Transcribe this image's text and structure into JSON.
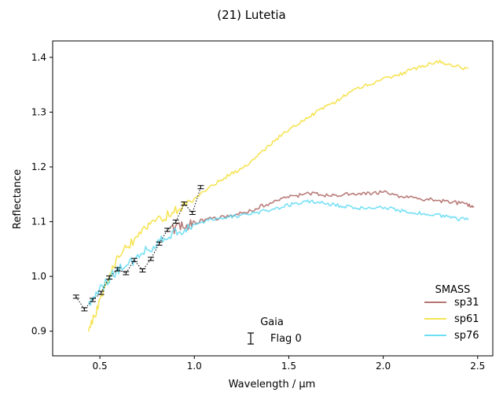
{
  "chart_data": {
    "type": "line",
    "title": "(21) Lutetia",
    "xlabel": "Wavelength / μm",
    "ylabel": "Reflectance",
    "xlim": [
      0.25,
      2.58
    ],
    "ylim": [
      0.855,
      1.43
    ],
    "xticks": [
      0.5,
      1.0,
      1.5,
      2.0,
      2.5
    ],
    "xtick_labels": [
      "0.5",
      "1.0",
      "1.5",
      "2.0",
      "2.5"
    ],
    "yticks": [
      0.9,
      1.0,
      1.1,
      1.2,
      1.3,
      1.4
    ],
    "ytick_labels": [
      "0.9",
      "1.0",
      "1.1",
      "1.2",
      "1.3",
      "1.4"
    ],
    "grid": false,
    "legend_smass": {
      "title": "SMASS",
      "placement": "bottom-right",
      "entries": [
        "sp31",
        "sp61",
        "sp76"
      ]
    },
    "legend_gaia": {
      "title": "Gaia",
      "placement": "bottom-center",
      "entries": [
        "Flag 0"
      ]
    },
    "series": [
      {
        "name": "sp31",
        "color": "#a85d5a",
        "x": [
          0.88,
          0.92,
          0.96,
          1.0,
          1.05,
          1.1,
          1.15,
          1.2,
          1.25,
          1.3,
          1.35,
          1.4,
          1.45,
          1.5,
          1.55,
          1.6,
          1.65,
          1.7,
          1.75,
          1.8,
          1.85,
          1.9,
          1.95,
          2.0,
          2.05,
          2.1,
          2.15,
          2.2,
          2.25,
          2.3,
          2.35,
          2.4,
          2.45,
          2.48
        ],
        "y": [
          1.085,
          1.09,
          1.093,
          1.098,
          1.103,
          1.106,
          1.108,
          1.11,
          1.115,
          1.12,
          1.128,
          1.134,
          1.14,
          1.145,
          1.148,
          1.151,
          1.15,
          1.148,
          1.149,
          1.15,
          1.151,
          1.15,
          1.152,
          1.155,
          1.15,
          1.146,
          1.145,
          1.142,
          1.14,
          1.138,
          1.136,
          1.134,
          1.13,
          1.128
        ]
      },
      {
        "name": "sp61",
        "color": "#f4df3a",
        "x": [
          0.44,
          0.47,
          0.5,
          0.53,
          0.56,
          0.6,
          0.65,
          0.7,
          0.75,
          0.8,
          0.85,
          0.9,
          0.95,
          1.0,
          1.05,
          1.1,
          1.15,
          1.2,
          1.25,
          1.3,
          1.35,
          1.4,
          1.45,
          1.5,
          1.55,
          1.6,
          1.65,
          1.7,
          1.75,
          1.8,
          1.85,
          1.9,
          1.95,
          2.0,
          2.05,
          2.1,
          2.15,
          2.2,
          2.25,
          2.3,
          2.35,
          2.4,
          2.45
        ],
        "y": [
          0.9,
          0.925,
          0.955,
          0.985,
          1.01,
          1.035,
          1.055,
          1.075,
          1.09,
          1.1,
          1.11,
          1.12,
          1.13,
          1.14,
          1.155,
          1.168,
          1.178,
          1.188,
          1.198,
          1.208,
          1.225,
          1.24,
          1.255,
          1.268,
          1.278,
          1.29,
          1.3,
          1.31,
          1.32,
          1.33,
          1.34,
          1.348,
          1.352,
          1.36,
          1.365,
          1.37,
          1.378,
          1.382,
          1.388,
          1.392,
          1.388,
          1.382,
          1.38
        ]
      },
      {
        "name": "sp76",
        "color": "#55d8f2",
        "x": [
          0.44,
          0.47,
          0.5,
          0.53,
          0.56,
          0.6,
          0.65,
          0.7,
          0.75,
          0.8,
          0.85,
          0.9,
          0.95,
          1.0,
          1.05,
          1.1,
          1.15,
          1.2,
          1.25,
          1.3,
          1.35,
          1.4,
          1.45,
          1.5,
          1.55,
          1.6,
          1.65,
          1.7,
          1.75,
          1.8,
          1.85,
          1.9,
          1.95,
          2.0,
          2.05,
          2.1,
          2.15,
          2.2,
          2.25,
          2.3,
          2.35,
          2.4,
          2.45
        ],
        "y": [
          0.95,
          0.96,
          0.975,
          0.99,
          1.0,
          1.012,
          1.022,
          1.035,
          1.048,
          1.06,
          1.07,
          1.08,
          1.088,
          1.095,
          1.1,
          1.105,
          1.108,
          1.11,
          1.112,
          1.114,
          1.118,
          1.122,
          1.126,
          1.13,
          1.134,
          1.138,
          1.136,
          1.133,
          1.13,
          1.128,
          1.126,
          1.124,
          1.125,
          1.126,
          1.124,
          1.12,
          1.118,
          1.116,
          1.114,
          1.112,
          1.108,
          1.105,
          1.103
        ]
      },
      {
        "name": "Flag 0",
        "style": "dotted-errorbar",
        "color": "#000000",
        "x": [
          0.374,
          0.418,
          0.462,
          0.506,
          0.55,
          0.594,
          0.638,
          0.682,
          0.726,
          0.77,
          0.814,
          0.858,
          0.902,
          0.946,
          0.99,
          1.034
        ],
        "y": [
          0.963,
          0.94,
          0.957,
          0.97,
          0.998,
          1.013,
          1.006,
          1.03,
          1.011,
          1.032,
          1.06,
          1.085,
          1.1,
          1.133,
          1.116,
          1.163
        ],
        "yerr": [
          0.0015,
          0.0015,
          0.0015,
          0.0015,
          0.0015,
          0.0015,
          0.0015,
          0.0015,
          0.0015,
          0.0015,
          0.0015,
          0.0015,
          0.0015,
          0.0015,
          0.0015,
          0.0015
        ]
      }
    ]
  }
}
